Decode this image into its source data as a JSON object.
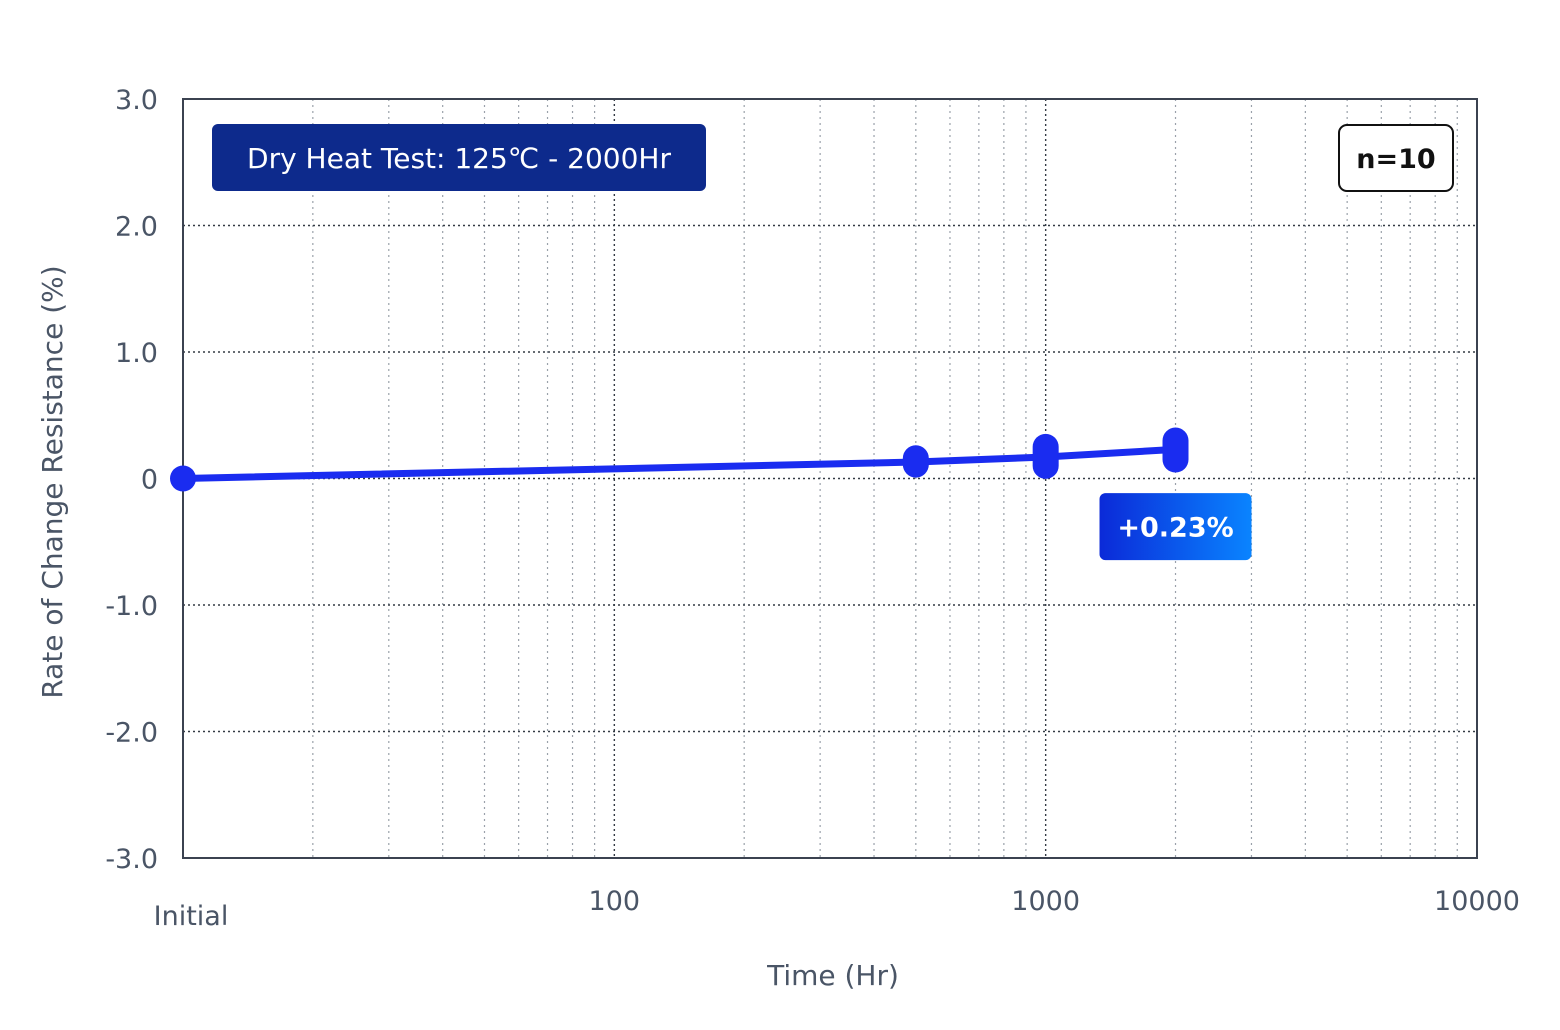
{
  "chart_data": {
    "type": "line",
    "title": "Dry Heat Test: 125℃ - 2000Hr",
    "sample_size_label": "n=10",
    "xlabel": "Time (Hr)",
    "ylabel": "Rate of Change Resistance (%)",
    "x_scale": "log",
    "xlim": [
      10,
      10000
    ],
    "ylim": [
      -3.0,
      3.0
    ],
    "grid": true,
    "x_ticks": [
      {
        "value": 10,
        "label": "Initial"
      },
      {
        "value": 100,
        "label": "100"
      },
      {
        "value": 1000,
        "label": "1000"
      },
      {
        "value": 10000,
        "label": "10000"
      }
    ],
    "y_ticks": [
      {
        "value": 3.0,
        "label": "3.0"
      },
      {
        "value": 2.0,
        "label": "2.0"
      },
      {
        "value": 1.0,
        "label": "1.0"
      },
      {
        "value": 0,
        "label": "0"
      },
      {
        "value": -1.0,
        "label": "-1.0"
      },
      {
        "value": -2.0,
        "label": "-2.0"
      },
      {
        "value": -3.0,
        "label": "-3.0"
      }
    ],
    "series": [
      {
        "color": "#1a2cf0",
        "points": [
          {
            "x": 10,
            "y": 0.0,
            "min": 0.0,
            "max": 0.0
          },
          {
            "x": 500,
            "y": 0.13,
            "min": 0.11,
            "max": 0.16
          },
          {
            "x": 1000,
            "y": 0.17,
            "min": 0.1,
            "max": 0.25
          },
          {
            "x": 2000,
            "y": 0.23,
            "min": 0.15,
            "max": 0.3
          }
        ]
      }
    ],
    "annotations": [
      {
        "text": "+0.23%",
        "x": 2000,
        "y": -0.38
      }
    ],
    "colors": {
      "title_box": "#0d2a8c",
      "callout_start": "#0b2ad8",
      "callout_end": "#0a84ff"
    }
  }
}
